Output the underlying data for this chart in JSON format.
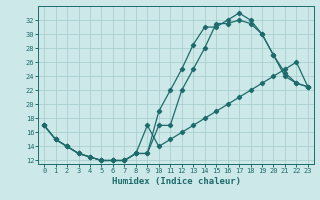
{
  "xlabel": "Humidex (Indice chaleur)",
  "bg_color": "#cce8e8",
  "grid_color": "#aacfcf",
  "line_color": "#1e6b6b",
  "xlim": [
    -0.5,
    23.5
  ],
  "ylim": [
    11.5,
    34.0
  ],
  "xticks": [
    0,
    1,
    2,
    3,
    4,
    5,
    6,
    7,
    8,
    9,
    10,
    11,
    12,
    13,
    14,
    15,
    16,
    17,
    18,
    19,
    20,
    21,
    22,
    23
  ],
  "yticks": [
    12,
    14,
    16,
    18,
    20,
    22,
    24,
    26,
    28,
    30,
    32
  ],
  "curveA_x": [
    0,
    1,
    2,
    3,
    4,
    5,
    6,
    7,
    8,
    9,
    10,
    11,
    12,
    13,
    14,
    15,
    16,
    17,
    18,
    19,
    20,
    21,
    22,
    23
  ],
  "curveA_y": [
    17,
    15,
    14,
    13,
    12.5,
    12,
    12,
    12,
    13,
    13,
    19,
    22,
    25,
    28.5,
    31,
    31,
    32,
    33,
    32,
    30,
    27,
    24.5,
    23,
    22.5
  ],
  "curveB_x": [
    0,
    1,
    2,
    3,
    4,
    5,
    6,
    7,
    8,
    9,
    10,
    11,
    12,
    13,
    14,
    15,
    16,
    17,
    18,
    19,
    20,
    21,
    22,
    23
  ],
  "curveB_y": [
    17,
    15,
    14,
    13,
    12.5,
    12,
    12,
    12,
    13,
    13,
    17,
    17,
    22,
    25,
    28,
    31.5,
    31.5,
    32,
    31.5,
    30,
    27,
    24,
    23,
    22.5
  ],
  "curveC_x": [
    0,
    1,
    2,
    3,
    4,
    5,
    6,
    7,
    8,
    9,
    10,
    11,
    12,
    13,
    14,
    15,
    16,
    17,
    18,
    19,
    20,
    21,
    22,
    23
  ],
  "curveC_y": [
    17,
    15,
    14,
    13,
    12.5,
    12,
    12,
    12,
    13,
    17,
    14,
    15,
    16,
    17,
    18,
    19,
    20,
    21,
    22,
    23,
    24,
    25,
    26,
    22.5
  ]
}
